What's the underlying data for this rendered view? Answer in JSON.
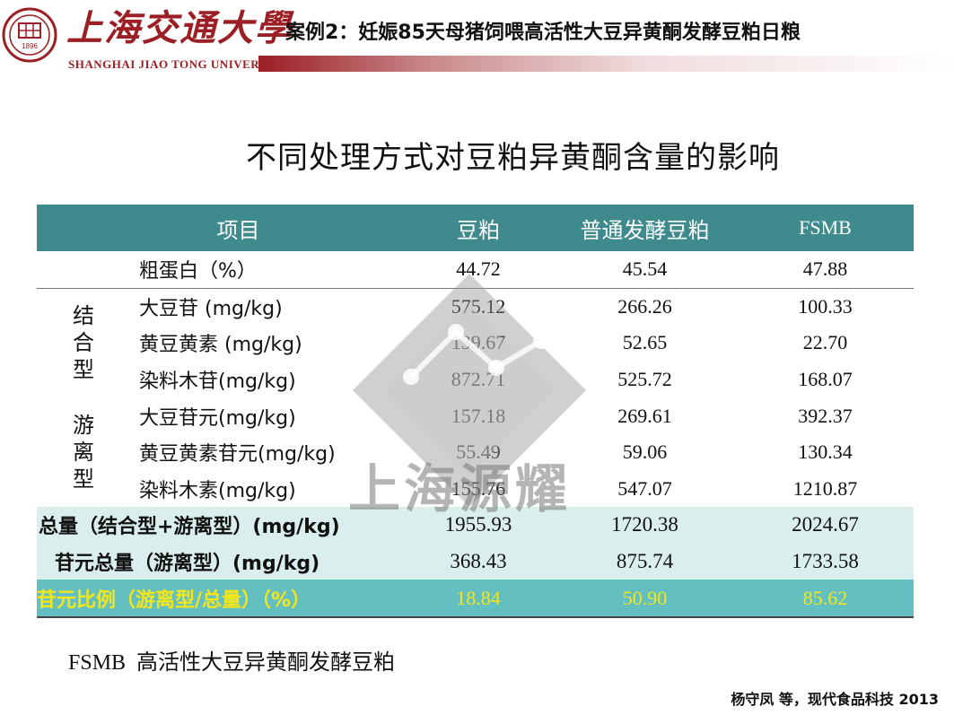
{
  "header": {
    "logo_cn": "上海交通大學",
    "logo_en": "SHANGHAI JIAO TONG UNIVERSITY",
    "seal_year": "1896",
    "case_title": "案例2：妊娠85天母猪饲喂高活性大豆异黄酮发酵豆粕日粮",
    "colors": {
      "brand": "#9b1f24"
    }
  },
  "slide_title": "不同处理方式对豆粕异黄酮含量的影响",
  "table": {
    "columns": [
      "项目",
      "豆粕",
      "普通发酵豆粕",
      "FSMB"
    ],
    "first_row": {
      "label": "粗蛋白（%）",
      "values": [
        "44.72",
        "45.54",
        "47.88"
      ]
    },
    "group_bound": "结合型",
    "group_free": "游离型",
    "rows": [
      {
        "label": "大豆苷 (mg/kg)",
        "values": [
          "575.12",
          "266.26",
          "100.33"
        ]
      },
      {
        "label": "黄豆黄素 (mg/kg)",
        "values": [
          "139.67",
          "52.65",
          "22.70"
        ]
      },
      {
        "label": "染料木苷(mg/kg)",
        "values": [
          "872.71",
          "525.72",
          "168.07"
        ]
      },
      {
        "label": "大豆苷元(mg/kg)",
        "values": [
          "157.18",
          "269.61",
          "392.37"
        ]
      },
      {
        "label": "黄豆黄素苷元(mg/kg)",
        "values": [
          "55.49",
          "59.06",
          "130.34"
        ]
      },
      {
        "label": "染料木素(mg/kg)",
        "values": [
          "155.76",
          "547.07",
          "1210.87"
        ]
      }
    ],
    "total": {
      "label": "总量（结合型+游离型）(mg/kg)",
      "values": [
        "1955.93",
        "1720.38",
        "2024.67"
      ]
    },
    "aglycone_total": {
      "label": "苷元总量（游离型）(mg/kg)",
      "values": [
        "368.43",
        "875.74",
        "1733.58"
      ]
    },
    "ratio": {
      "label": "苷元比例（游离型/总量）（%）",
      "values": [
        "18.84",
        "50.90",
        "85.62"
      ]
    },
    "colors": {
      "header": "#3f8a8c",
      "sum_rows": "#daeeee",
      "ratio_row": "#64c0c0",
      "ratio_text": "#f5e61a"
    }
  },
  "watermark": {
    "text": "上海源耀"
  },
  "footnote": {
    "abbr": "FSMB",
    "text": "高活性大豆异黄酮发酵豆粕"
  },
  "citation": "杨守凤 等，现代食品科技 2013"
}
